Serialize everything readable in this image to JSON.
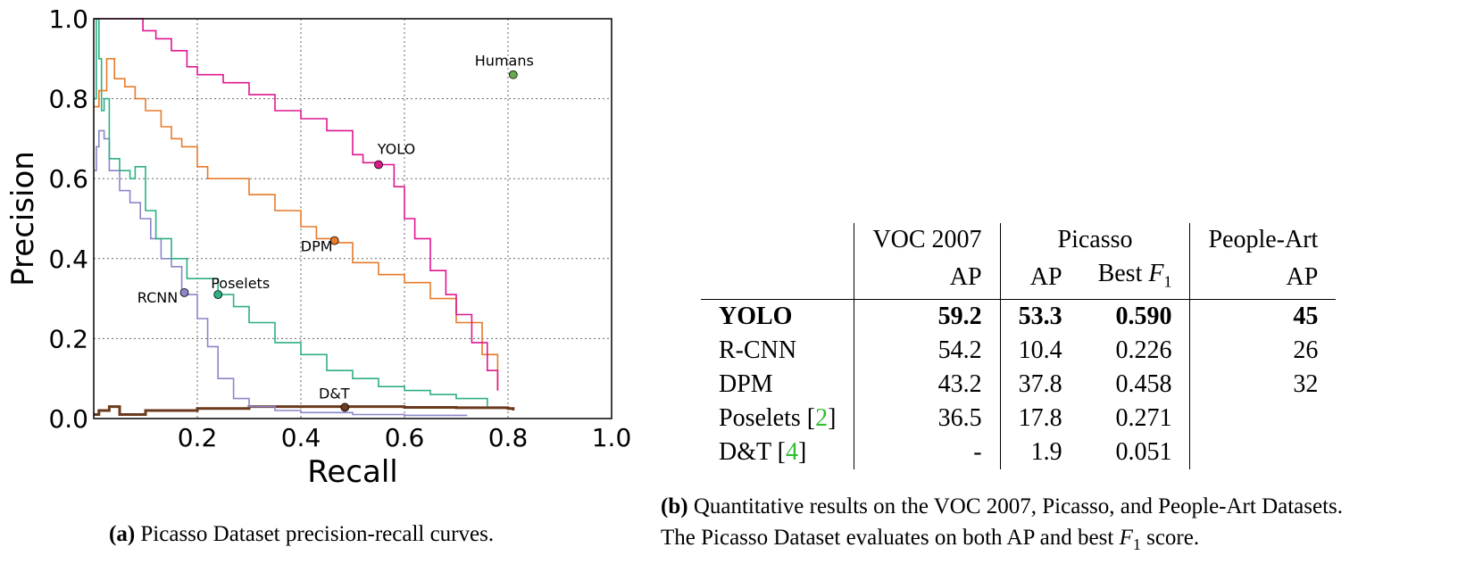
{
  "chart_data": {
    "type": "line",
    "xlabel": "Recall",
    "ylabel": "Precision",
    "xlim": [
      0,
      1.0
    ],
    "ylim": [
      0,
      1.0
    ],
    "xticks": [
      "0.2",
      "0.4",
      "0.6",
      "0.8",
      "1.0"
    ],
    "yticks": [
      "0.0",
      "0.2",
      "0.4",
      "0.6",
      "0.8",
      "1.0"
    ],
    "grid": true,
    "series": [
      {
        "name": "YOLO",
        "color": "#e0168f",
        "x": [
          0,
          0.01,
          0.09,
          0.095,
          0.12,
          0.15,
          0.18,
          0.2,
          0.25,
          0.3,
          0.35,
          0.4,
          0.45,
          0.5,
          0.52,
          0.55,
          0.58,
          0.6,
          0.62,
          0.65,
          0.68,
          0.7,
          0.73,
          0.76,
          0.78
        ],
        "y": [
          1.0,
          1.0,
          1.0,
          0.97,
          0.95,
          0.92,
          0.88,
          0.86,
          0.84,
          0.81,
          0.77,
          0.75,
          0.72,
          0.66,
          0.64,
          0.635,
          0.58,
          0.5,
          0.45,
          0.37,
          0.31,
          0.26,
          0.19,
          0.12,
          0.07
        ]
      },
      {
        "name": "DPM",
        "color": "#e87a2a",
        "x": [
          0,
          0.01,
          0.025,
          0.04,
          0.06,
          0.08,
          0.1,
          0.13,
          0.15,
          0.17,
          0.2,
          0.22,
          0.25,
          0.3,
          0.35,
          0.4,
          0.43,
          0.46,
          0.47,
          0.5,
          0.55,
          0.6,
          0.65,
          0.7,
          0.75,
          0.78
        ],
        "y": [
          0.78,
          0.82,
          0.9,
          0.85,
          0.83,
          0.8,
          0.77,
          0.73,
          0.7,
          0.68,
          0.63,
          0.6,
          0.6,
          0.56,
          0.52,
          0.48,
          0.45,
          0.45,
          0.44,
          0.39,
          0.36,
          0.34,
          0.3,
          0.24,
          0.16,
          0.07
        ]
      },
      {
        "name": "Poselets",
        "color": "#2eaf84",
        "x": [
          0,
          0.005,
          0.01,
          0.015,
          0.02,
          0.03,
          0.05,
          0.07,
          0.08,
          0.1,
          0.12,
          0.15,
          0.18,
          0.24,
          0.27,
          0.3,
          0.35,
          0.4,
          0.45,
          0.5,
          0.55,
          0.6,
          0.65,
          0.7,
          0.76
        ],
        "y": [
          0.8,
          1.0,
          0.9,
          0.77,
          0.8,
          0.65,
          0.62,
          0.6,
          0.63,
          0.52,
          0.45,
          0.4,
          0.35,
          0.31,
          0.28,
          0.24,
          0.19,
          0.16,
          0.12,
          0.1,
          0.08,
          0.07,
          0.06,
          0.05,
          0.03
        ]
      },
      {
        "name": "RCNN",
        "color": "#8b86c8",
        "x": [
          0,
          0.005,
          0.01,
          0.02,
          0.03,
          0.05,
          0.07,
          0.09,
          0.11,
          0.13,
          0.15,
          0.17,
          0.18,
          0.2,
          0.22,
          0.24,
          0.27,
          0.3,
          0.35,
          0.4,
          0.5,
          0.6,
          0.72
        ],
        "y": [
          0.62,
          0.68,
          0.72,
          0.7,
          0.62,
          0.57,
          0.54,
          0.5,
          0.45,
          0.4,
          0.38,
          0.32,
          0.31,
          0.25,
          0.18,
          0.1,
          0.05,
          0.03,
          0.02,
          0.015,
          0.01,
          0.008,
          0.006
        ]
      },
      {
        "name": "D&T",
        "color": "#6b3a1e",
        "x": [
          0,
          0.01,
          0.02,
          0.03,
          0.05,
          0.1,
          0.2,
          0.3,
          0.4,
          0.5,
          0.6,
          0.7,
          0.8,
          0.81
        ],
        "y": [
          0.01,
          0.02,
          0.02,
          0.03,
          0.01,
          0.02,
          0.025,
          0.03,
          0.03,
          0.03,
          0.028,
          0.027,
          0.025,
          0.02
        ]
      }
    ],
    "points": [
      {
        "name": "YOLO",
        "x": 0.55,
        "y": 0.635,
        "color": "#e0168f"
      },
      {
        "name": "DPM",
        "x": 0.465,
        "y": 0.445,
        "color": "#e87a2a"
      },
      {
        "name": "Poselets",
        "x": 0.24,
        "y": 0.31,
        "color": "#2eaf84"
      },
      {
        "name": "RCNN",
        "x": 0.175,
        "y": 0.315,
        "color": "#8b86c8"
      },
      {
        "name": "D&T",
        "x": 0.485,
        "y": 0.028,
        "color": "#6b3a1e"
      },
      {
        "name": "Humans",
        "x": 0.81,
        "y": 0.86,
        "color": "#6aa84f"
      }
    ]
  },
  "caption_a": {
    "label": "(a)",
    "text": " Picasso Dataset precision-recall curves."
  },
  "table": {
    "header": {
      "group1": "VOC 2007",
      "group2": "Picasso",
      "group3": "People-Art",
      "sub_ap": "AP",
      "sub_best": "Best ",
      "sub_f": "F",
      "sub_f_index": "1"
    },
    "rows": [
      {
        "method": "YOLO",
        "ref": "",
        "voc_ap": "59.2",
        "picasso_ap": "53.3",
        "picasso_f1": "0.590",
        "people_ap": "45"
      },
      {
        "method": "R-CNN",
        "ref": "",
        "voc_ap": "54.2",
        "picasso_ap": "10.4",
        "picasso_f1": "0.226",
        "people_ap": "26"
      },
      {
        "method": "DPM",
        "ref": "",
        "voc_ap": "43.2",
        "picasso_ap": "37.8",
        "picasso_f1": "0.458",
        "people_ap": "32"
      },
      {
        "method": "Poselets",
        "ref": "2",
        "voc_ap": "36.5",
        "picasso_ap": "17.8",
        "picasso_f1": "0.271",
        "people_ap": ""
      },
      {
        "method": "D&T",
        "ref": "4",
        "voc_ap": "-",
        "picasso_ap": "1.9",
        "picasso_f1": "0.051",
        "people_ap": ""
      }
    ]
  },
  "caption_b": {
    "label": "(b)",
    "line1": " Quantitative results on the VOC 2007, Picasso, and People-Art Datasets.",
    "line2a": "The Picasso Dataset evaluates on both AP and best ",
    "line2_f": "F",
    "line2_index": "1",
    "line2b": " score."
  }
}
